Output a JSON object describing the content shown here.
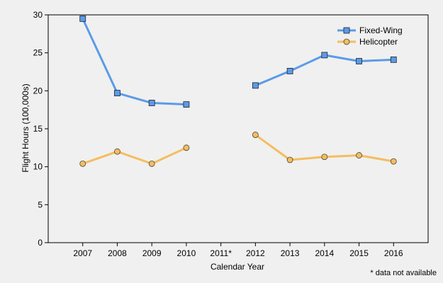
{
  "chart_data": {
    "type": "line",
    "title": "",
    "xlabel": "Calendar Year",
    "ylabel": "Flight Hours (100,000s)",
    "categories": [
      "2007",
      "2008",
      "2009",
      "2010",
      "2011*",
      "2012",
      "2013",
      "2014",
      "2015",
      "2016"
    ],
    "ylim": [
      0,
      30
    ],
    "yticks": [
      0,
      5,
      10,
      15,
      20,
      25,
      30
    ],
    "grid": false,
    "legend_position": "top-right",
    "series": [
      {
        "name": "Fixed-Wing",
        "color": "#5b9be8",
        "marker": "square",
        "values": [
          29.5,
          19.7,
          18.4,
          18.2,
          null,
          20.7,
          22.6,
          24.7,
          23.9,
          24.1
        ]
      },
      {
        "name": "Helicopter",
        "color": "#f5bd5e",
        "marker": "circle",
        "values": [
          10.4,
          12.0,
          10.4,
          12.5,
          null,
          14.2,
          10.9,
          11.3,
          11.5,
          10.7
        ]
      }
    ],
    "annotation": "* data not available"
  }
}
